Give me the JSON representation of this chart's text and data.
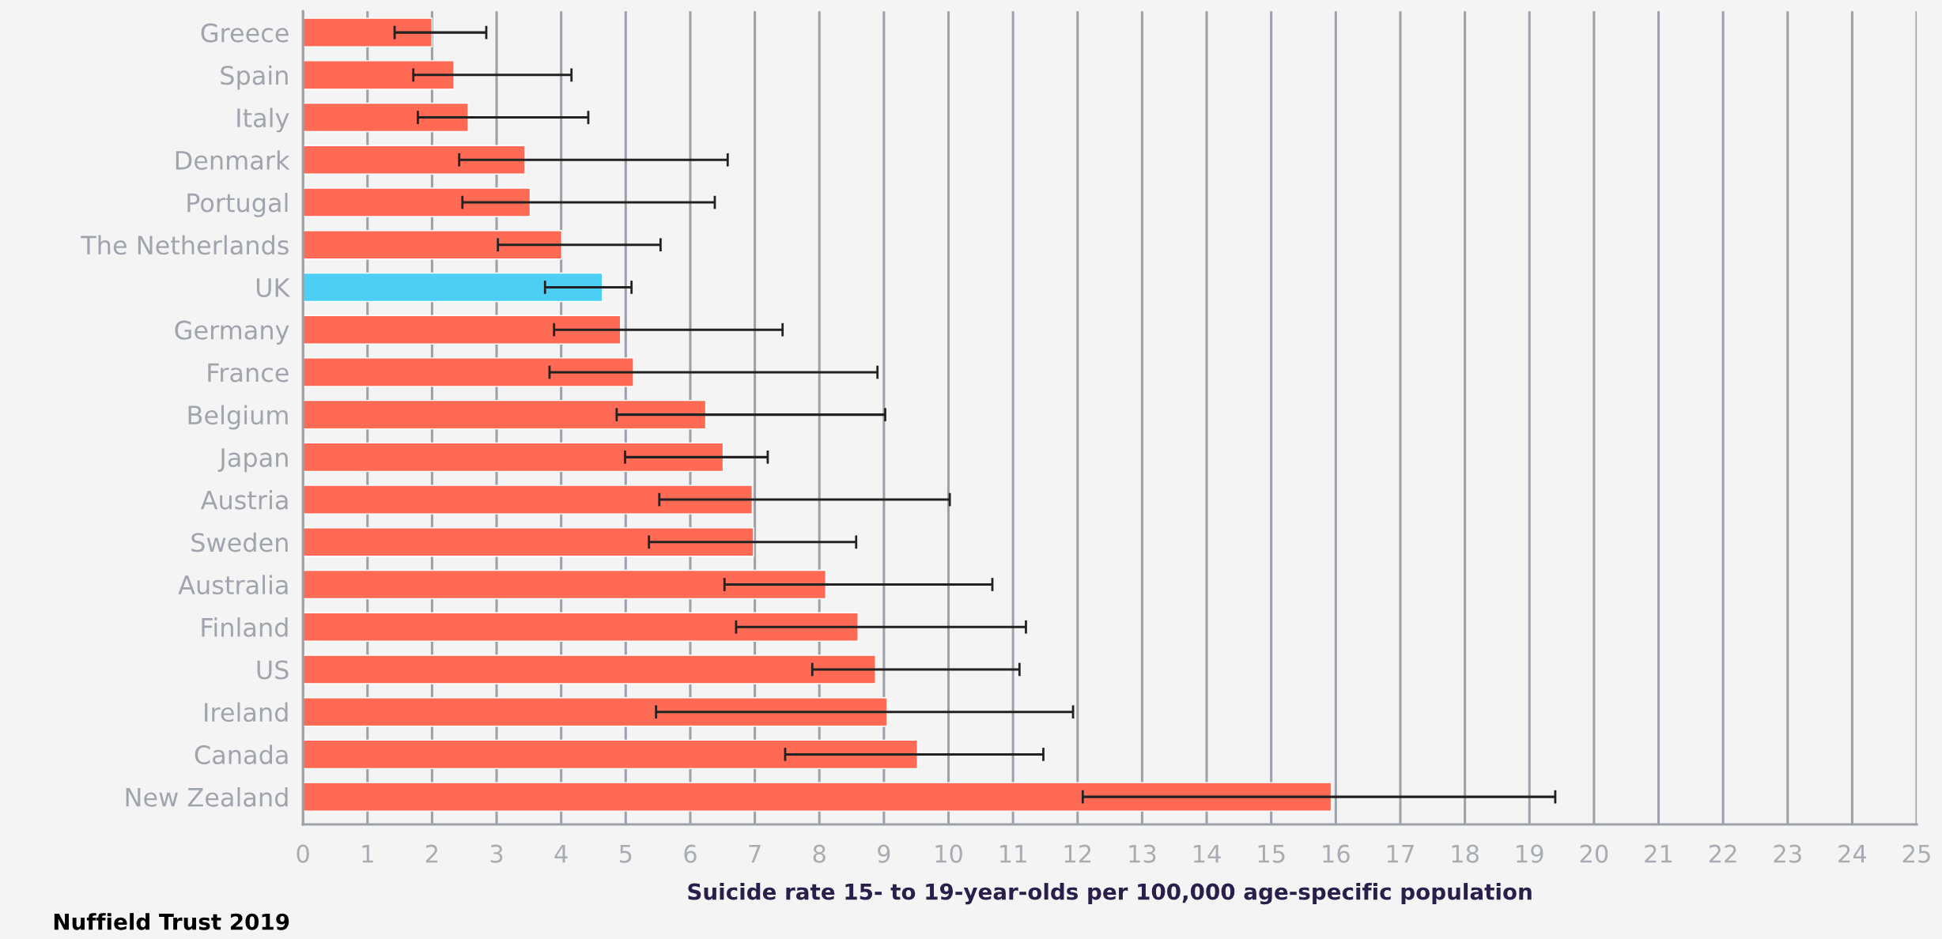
{
  "chart_data": {
    "type": "bar",
    "orientation": "horizontal",
    "xlabel": "Suicide rate 15- to 19-year-olds per 100,000 age-specific population",
    "categories": [
      "Greece",
      "Spain",
      "Italy",
      "Denmark",
      "Portugal",
      "The Netherlands",
      "UK",
      "Germany",
      "France",
      "Belgium",
      "Japan",
      "Austria",
      "Sweden",
      "Australia",
      "Finland",
      "US",
      "Ireland",
      "Canada",
      "New Zealand"
    ],
    "values": [
      2.0,
      2.34,
      2.56,
      3.44,
      3.52,
      4.01,
      4.64,
      4.92,
      5.12,
      6.24,
      6.51,
      6.96,
      6.98,
      8.1,
      8.6,
      8.87,
      9.05,
      9.52,
      15.93
    ],
    "errors": [
      [
        1.42,
        2.84
      ],
      [
        1.71,
        4.16
      ],
      [
        1.78,
        4.42
      ],
      [
        2.42,
        6.58
      ],
      [
        2.47,
        6.38
      ],
      [
        3.02,
        5.54
      ],
      [
        3.75,
        5.09
      ],
      [
        3.89,
        7.43
      ],
      [
        3.82,
        8.9
      ],
      [
        4.86,
        9.02
      ],
      [
        4.99,
        7.2
      ],
      [
        5.52,
        10.02
      ],
      [
        5.36,
        8.57
      ],
      [
        6.53,
        10.68
      ],
      [
        6.71,
        11.2
      ],
      [
        7.89,
        11.1
      ],
      [
        5.47,
        11.93
      ],
      [
        7.47,
        11.47
      ],
      [
        12.08,
        19.4
      ]
    ],
    "colors": [
      "#ff6a55",
      "#ff6a55",
      "#ff6a55",
      "#ff6a55",
      "#ff6a55",
      "#ff6a55",
      "#4dcff5",
      "#ff6a55",
      "#ff6a55",
      "#ff6a55",
      "#ff6a55",
      "#ff6a55",
      "#ff6a55",
      "#ff6a55",
      "#ff6a55",
      "#ff6a55",
      "#ff6a55",
      "#ff6a55",
      "#ff6a55"
    ],
    "xlim": [
      0,
      25
    ],
    "xticks": [
      0,
      1,
      2,
      3,
      4,
      5,
      6,
      7,
      8,
      9,
      10,
      11,
      12,
      13,
      14,
      15,
      16,
      17,
      18,
      19,
      20,
      21,
      22,
      23,
      24,
      25
    ],
    "grid": "x",
    "annotations": [
      "Nuffield Trust 2019"
    ]
  }
}
